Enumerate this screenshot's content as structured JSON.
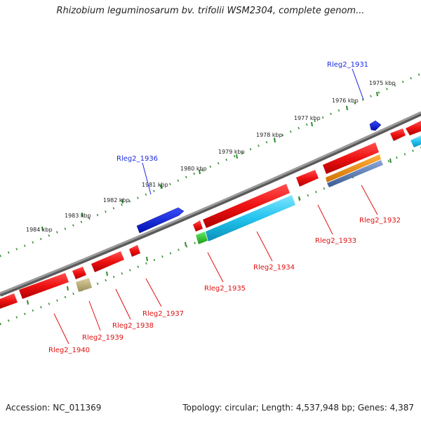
{
  "title": "Rhizobium leguminosarum bv. trifolii WSM2304, complete genom...",
  "footer": {
    "accession": "Accession: NC_011369",
    "summary": "Topology: circular; Length: 4,537,948 bp; Genes: 4,387"
  },
  "ticks": [
    "1975 kbp",
    "1976 kbp",
    "1977 kbp",
    "1978 kbp",
    "1979 kbp",
    "1980 kbp",
    "1981 kbp",
    "1982 kbp",
    "1983 kbp",
    "1984 kbp"
  ],
  "genes": [
    {
      "label": "Rleg2_1931",
      "strand": "+",
      "color": "#0a1ae0"
    },
    {
      "label": "Rleg2_1936",
      "strand": "+",
      "color": "#0a1ae0"
    },
    {
      "label": "Rleg2_1932",
      "strand": "-",
      "color": "#e01010"
    },
    {
      "label": "Rleg2_1933",
      "strand": "-",
      "color": "#e01010"
    },
    {
      "label": "Rleg2_1934",
      "strand": "-",
      "color": "#e01010"
    },
    {
      "label": "Rleg2_1935",
      "strand": "-",
      "color": "#e01010"
    },
    {
      "label": "Rleg2_1937",
      "strand": "-",
      "color": "#e01010"
    },
    {
      "label": "Rleg2_1938",
      "strand": "-",
      "color": "#e01010"
    },
    {
      "label": "Rleg2_1939",
      "strand": "-",
      "color": "#e01010"
    },
    {
      "label": "Rleg2_1940",
      "strand": "-",
      "color": "#e01010"
    }
  ],
  "colors": {
    "backbone": "#8a8a8a",
    "gene_red": "#ee1111",
    "gene_blue": "#0a1ae0",
    "cds_cyan": "#22c4ee",
    "cds_green": "#33cc33",
    "cds_orange": "#f09010",
    "cds_steel": "#5b7fb0",
    "cds_khaki": "#c8bb80",
    "tick_green": "#2e8b2e"
  }
}
